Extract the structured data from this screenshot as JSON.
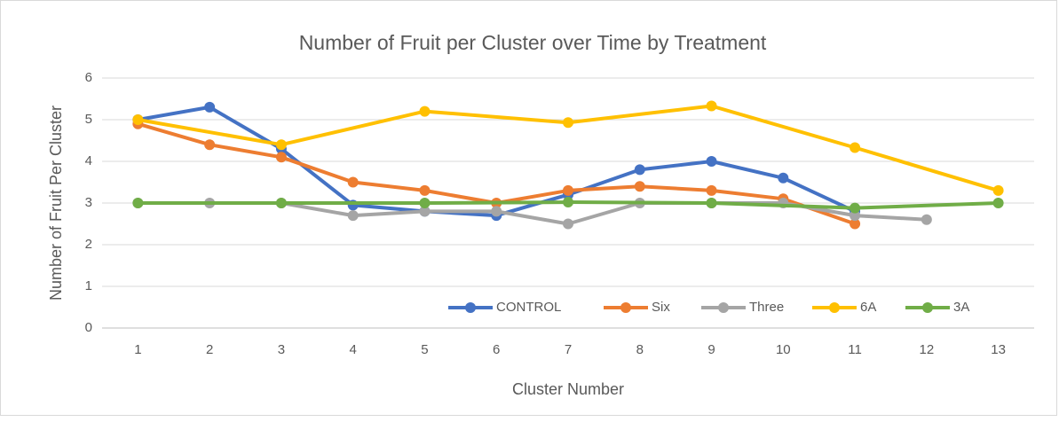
{
  "chart_data": {
    "type": "line",
    "title": "Number of Fruit per Cluster over Time by Treatment",
    "x_label": "Cluster Number",
    "y_label": "Number of Fruit Per Cluster",
    "categories": [
      "1",
      "2",
      "3",
      "4",
      "5",
      "6",
      "7",
      "8",
      "9",
      "10",
      "11",
      "12",
      "13"
    ],
    "series": [
      {
        "name": "CONTROL",
        "color": "#4472c4",
        "values": [
          5.0,
          5.3,
          4.3,
          2.95,
          2.8,
          2.7,
          3.2,
          3.8,
          4.0,
          3.6,
          2.8,
          null,
          null
        ]
      },
      {
        "name": "Six",
        "color": "#ed7d31",
        "values": [
          4.9,
          4.4,
          4.1,
          3.5,
          3.3,
          3.0,
          3.3,
          3.4,
          3.3,
          3.1,
          2.5,
          null,
          null
        ]
      },
      {
        "name": "Three",
        "color": "#a5a5a5",
        "values": [
          3.0,
          3.0,
          3.0,
          2.7,
          2.8,
          2.8,
          2.5,
          3.0,
          3.0,
          3.0,
          2.7,
          2.6,
          null
        ]
      },
      {
        "name": "6A",
        "color": "#ffc000",
        "values": [
          5.0,
          null,
          4.4,
          null,
          5.2,
          null,
          4.93,
          null,
          5.33,
          null,
          4.33,
          null,
          3.3
        ]
      },
      {
        "name": "3A",
        "color": "#70ad47",
        "values": [
          3.0,
          null,
          3.0,
          null,
          3.0,
          null,
          3.02,
          null,
          3.0,
          null,
          2.88,
          null,
          3.0
        ]
      }
    ],
    "ylim": [
      0,
      6
    ],
    "yticks": [
      0,
      1,
      2,
      3,
      4,
      5,
      6
    ],
    "grid": true,
    "connect_gaps": true,
    "legend": "bottom-right"
  }
}
